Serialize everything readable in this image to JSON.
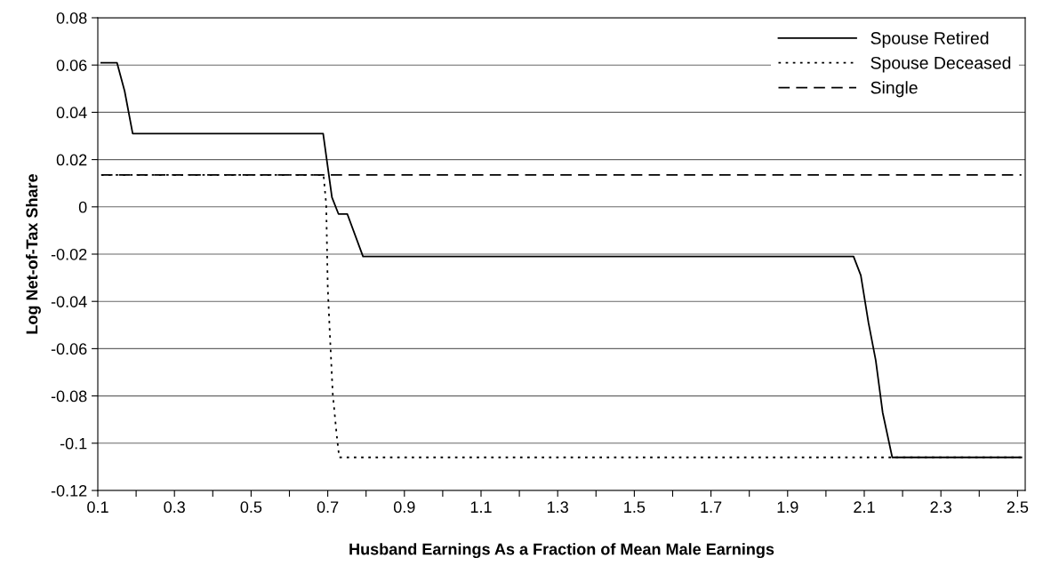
{
  "chart_data": {
    "type": "line",
    "xlabel": "Husband Earnings As a Fraction of Mean Male Earnings",
    "ylabel": "Log Net-of-Tax Share",
    "xlim": [
      0.1,
      2.52
    ],
    "ylim": [
      -0.12,
      0.08
    ],
    "xticks": [
      {
        "value": 0.1,
        "label": "0.1"
      },
      {
        "value": 0.2,
        "label": null
      },
      {
        "value": 0.3,
        "label": "0.3"
      },
      {
        "value": 0.4,
        "label": null
      },
      {
        "value": 0.5,
        "label": "0.5"
      },
      {
        "value": 0.6,
        "label": null
      },
      {
        "value": 0.7,
        "label": "0.7"
      },
      {
        "value": 0.8,
        "label": null
      },
      {
        "value": 0.9,
        "label": "0.9"
      },
      {
        "value": 1.0,
        "label": null
      },
      {
        "value": 1.1,
        "label": "1.1"
      },
      {
        "value": 1.2,
        "label": null
      },
      {
        "value": 1.3,
        "label": "1.3"
      },
      {
        "value": 1.4,
        "label": null
      },
      {
        "value": 1.5,
        "label": "1.5"
      },
      {
        "value": 1.6,
        "label": null
      },
      {
        "value": 1.7,
        "label": "1.7"
      },
      {
        "value": 1.8,
        "label": null
      },
      {
        "value": 1.9,
        "label": "1.9"
      },
      {
        "value": 2.0,
        "label": null
      },
      {
        "value": 2.1,
        "label": "2.1"
      },
      {
        "value": 2.2,
        "label": null
      },
      {
        "value": 2.3,
        "label": "2.3"
      },
      {
        "value": 2.4,
        "label": null
      },
      {
        "value": 2.5,
        "label": "2.5"
      }
    ],
    "yticks": [
      0.08,
      0.06,
      0.04,
      0.02,
      0,
      -0.02,
      -0.04,
      -0.06,
      -0.08,
      -0.1,
      -0.12
    ],
    "grid": "y",
    "legend": "top right",
    "marker": "none",
    "series": [
      {
        "name": "Spouse Retired",
        "color": "#000000",
        "line_style": "solid",
        "x": [
          0.109,
          0.15,
          0.17,
          0.191,
          0.688,
          0.711,
          0.728,
          0.751,
          0.792,
          2.072,
          2.091,
          2.111,
          2.13,
          2.148,
          2.173,
          2.51
        ],
        "values": [
          0.061,
          0.061,
          0.049,
          0.031,
          0.031,
          0.004,
          -0.003,
          -0.003,
          -0.021,
          -0.021,
          -0.029,
          -0.049,
          -0.065,
          -0.087,
          -0.106,
          -0.106
        ]
      },
      {
        "name": "Spouse Deceased",
        "color": "#000000",
        "line_style": "dotted",
        "x": [
          0.109,
          0.689,
          0.696,
          0.7,
          0.705,
          0.713,
          0.723,
          0.73,
          2.51
        ],
        "values": [
          0.0135,
          0.0135,
          0.001,
          -0.034,
          -0.052,
          -0.079,
          -0.096,
          -0.106,
          -0.106
        ]
      },
      {
        "name": "Single",
        "color": "#000000",
        "line_style": "dashed",
        "x": [
          0.109,
          2.51
        ],
        "values": [
          0.0135,
          0.0135
        ]
      }
    ]
  }
}
